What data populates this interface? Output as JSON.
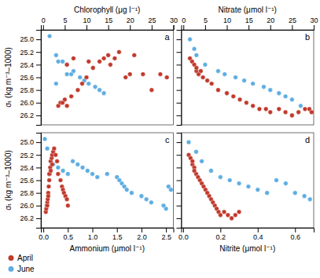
{
  "chart_data": [
    {
      "type": "scatter",
      "title": "a",
      "xlabel": "Chlorophyll (μg l⁻¹)",
      "ylabel": "σₜ (kg m⁻³‒1000)",
      "xlim": [
        -0.5,
        30
      ],
      "xticks": [
        0,
        5,
        10,
        15,
        20,
        25,
        30
      ],
      "ylim": [
        26.35,
        24.85
      ],
      "yticks": [
        {
          "value": 25.0,
          "label": "25.0"
        },
        25.2,
        25.4,
        25.6,
        25.8,
        {
          "value": 26.0,
          "label": "26.0"
        },
        26.2
      ],
      "grid": false,
      "legend": "lower left",
      "series": [
        {
          "name": "April",
          "color": "#C0392B",
          "x": [
            3.5,
            4.0,
            4.5,
            5.0,
            5.5,
            6.5,
            8.0,
            9.0,
            10.0,
            11.5,
            13.0,
            14.0,
            15.0,
            16.5,
            17.5,
            19.0,
            20.0,
            21.0,
            23.0,
            25.0,
            27.0,
            28.5,
            5.5,
            7.0,
            10.5,
            15.5
          ],
          "values": [
            26.05,
            26.0,
            26.0,
            25.95,
            26.05,
            25.9,
            25.8,
            25.7,
            25.6,
            25.45,
            25.35,
            25.3,
            25.25,
            25.3,
            25.2,
            25.6,
            25.55,
            25.25,
            25.55,
            25.8,
            25.55,
            25.6,
            25.4,
            25.3,
            25.35,
            25.4
          ]
        },
        {
          "name": "June",
          "color": "#5DADE2",
          "x": [
            1.5,
            3.0,
            3.5,
            4.5,
            5.5,
            5.5,
            6.5,
            7.0,
            8.5,
            9.5,
            10.5,
            12.0,
            13.0,
            14.0,
            3.0
          ],
          "values": [
            24.95,
            25.25,
            25.35,
            25.35,
            25.4,
            25.55,
            25.55,
            25.5,
            25.6,
            25.65,
            25.7,
            25.75,
            25.8,
            25.85,
            25.7
          ]
        }
      ]
    },
    {
      "type": "scatter",
      "title": "b",
      "xlabel": "Nitrate (μmol l⁻¹)",
      "xlim": [
        -0.5,
        30
      ],
      "xticks": [
        0,
        5,
        10,
        15,
        20,
        25,
        30
      ],
      "ylim": [
        26.35,
        24.85
      ],
      "yticks": [
        {
          "value": 25.0,
          "label": "25.0"
        },
        25.2,
        25.4,
        25.6,
        25.8,
        {
          "value": 26.0,
          "label": "26.0"
        },
        26.2
      ],
      "grid": false,
      "tick_labels": "x",
      "series": [
        {
          "name": "April",
          "color": "#C0392B",
          "x": [
            1.5,
            2.0,
            2.5,
            3.0,
            3.5,
            4.5,
            5.5,
            6.5,
            8.0,
            10.0,
            11.5,
            13.0,
            14.5,
            16.0,
            17.5,
            19.0,
            20.0,
            22.0,
            23.5,
            25.0,
            26.5,
            28.0,
            29.0,
            29.5,
            3.0,
            4.0
          ],
          "values": [
            25.3,
            25.35,
            25.4,
            25.5,
            25.55,
            25.6,
            25.65,
            25.7,
            25.8,
            25.85,
            25.9,
            25.95,
            26.0,
            26.05,
            26.1,
            26.1,
            26.15,
            26.1,
            26.15,
            26.2,
            26.15,
            26.1,
            26.1,
            26.15,
            25.45,
            25.5
          ]
        },
        {
          "name": "June",
          "color": "#5DADE2",
          "x": [
            1.5,
            2.5,
            3.0,
            5.0,
            8.0,
            9.5,
            12.0,
            14.0,
            16.0,
            18.5,
            20.0,
            22.0,
            23.5,
            25.0,
            27.0
          ],
          "values": [
            25.0,
            25.15,
            25.25,
            25.4,
            25.5,
            25.55,
            25.6,
            25.65,
            25.7,
            25.75,
            25.8,
            25.85,
            25.9,
            25.95,
            26.05
          ]
        }
      ]
    },
    {
      "type": "scatter",
      "title": "c",
      "xlabel": "Ammonium (μmol l⁻¹)",
      "ylabel": "σₜ (kg m⁻³‒1000)",
      "xlim": [
        -0.05,
        2.65
      ],
      "xticks": [
        {
          "value": 0,
          "label": "0.0"
        },
        0.5,
        {
          "value": 1.0,
          "label": "1.0"
        },
        1.5,
        {
          "value": 2.0,
          "label": "2.0"
        },
        2.5
      ],
      "ylim": [
        26.35,
        24.85
      ],
      "yticks": [
        {
          "value": 25.0,
          "label": "25.0"
        },
        25.2,
        25.4,
        25.6,
        25.8,
        {
          "value": 26.0,
          "label": "26.0"
        },
        26.2
      ],
      "grid": false,
      "series": [
        {
          "name": "April",
          "color": "#C0392B",
          "x": [
            0.05,
            0.06,
            0.07,
            0.08,
            0.09,
            0.1,
            0.11,
            0.12,
            0.13,
            0.14,
            0.15,
            0.17,
            0.18,
            0.2,
            0.22,
            0.25,
            0.28,
            0.3,
            0.35,
            0.38,
            0.4,
            0.42,
            0.45,
            0.48,
            0.5,
            0.08,
            0.1,
            0.12,
            0.15,
            0.18
          ],
          "values": [
            26.1,
            26.05,
            26.0,
            25.95,
            25.9,
            25.8,
            25.7,
            25.6,
            25.5,
            25.4,
            25.3,
            25.25,
            25.2,
            25.15,
            25.1,
            25.2,
            25.3,
            25.5,
            25.6,
            25.7,
            25.75,
            25.8,
            25.85,
            25.9,
            26.0,
            26.0,
            25.85,
            25.5,
            25.45,
            25.35
          ]
        },
        {
          "name": "June",
          "color": "#5DADE2",
          "x": [
            0.03,
            0.08,
            0.15,
            0.2,
            0.3,
            0.4,
            0.5,
            0.6,
            0.7,
            0.8,
            0.9,
            1.0,
            1.5,
            1.55,
            1.6,
            1.65,
            1.7,
            1.8,
            2.0,
            2.1,
            2.2,
            2.45,
            2.5,
            2.55,
            2.6,
            1.1,
            1.3
          ],
          "values": [
            24.95,
            25.1,
            25.3,
            25.35,
            25.4,
            25.45,
            25.5,
            25.3,
            25.35,
            25.4,
            25.45,
            25.5,
            25.55,
            25.6,
            25.65,
            25.7,
            25.75,
            25.8,
            25.85,
            25.9,
            25.95,
            26.0,
            26.05,
            25.7,
            25.75,
            25.55,
            25.5
          ]
        }
      ]
    },
    {
      "type": "scatter",
      "title": "d",
      "xlabel": "Nitrite (μmol l⁻¹)",
      "xlim": [
        -0.01,
        0.7
      ],
      "xticks": [
        {
          "value": 0,
          "label": "0.0"
        },
        0.2,
        0.4,
        0.6
      ],
      "ylim": [
        26.35,
        24.85
      ],
      "yticks": [
        {
          "value": 25.0,
          "label": "25.0"
        },
        25.2,
        25.4,
        25.6,
        25.8,
        {
          "value": 26.0,
          "label": "26.0"
        },
        26.2
      ],
      "grid": false,
      "tick_labels": "x",
      "series": [
        {
          "name": "April",
          "color": "#C0392B",
          "x": [
            0.03,
            0.04,
            0.05,
            0.06,
            0.07,
            0.08,
            0.09,
            0.1,
            0.11,
            0.12,
            0.13,
            0.14,
            0.15,
            0.16,
            0.17,
            0.18,
            0.19,
            0.2,
            0.22,
            0.24,
            0.26,
            0.28,
            0.3,
            0.05,
            0.06
          ],
          "values": [
            25.2,
            25.25,
            25.35,
            25.4,
            25.5,
            25.55,
            25.6,
            25.65,
            25.7,
            25.75,
            25.8,
            25.85,
            25.9,
            25.95,
            26.0,
            26.05,
            26.1,
            26.15,
            26.1,
            26.15,
            26.2,
            26.15,
            26.1,
            25.3,
            25.45
          ]
        },
        {
          "name": "June",
          "color": "#5DADE2",
          "x": [
            0.03,
            0.07,
            0.1,
            0.15,
            0.2,
            0.25,
            0.3,
            0.35,
            0.4,
            0.45,
            0.5,
            0.55,
            0.6,
            0.65,
            0.68
          ],
          "values": [
            25.0,
            25.15,
            25.3,
            25.45,
            25.55,
            25.6,
            25.65,
            25.7,
            25.75,
            25.8,
            25.6,
            25.65,
            25.8,
            25.85,
            25.9
          ]
        }
      ]
    }
  ]
}
